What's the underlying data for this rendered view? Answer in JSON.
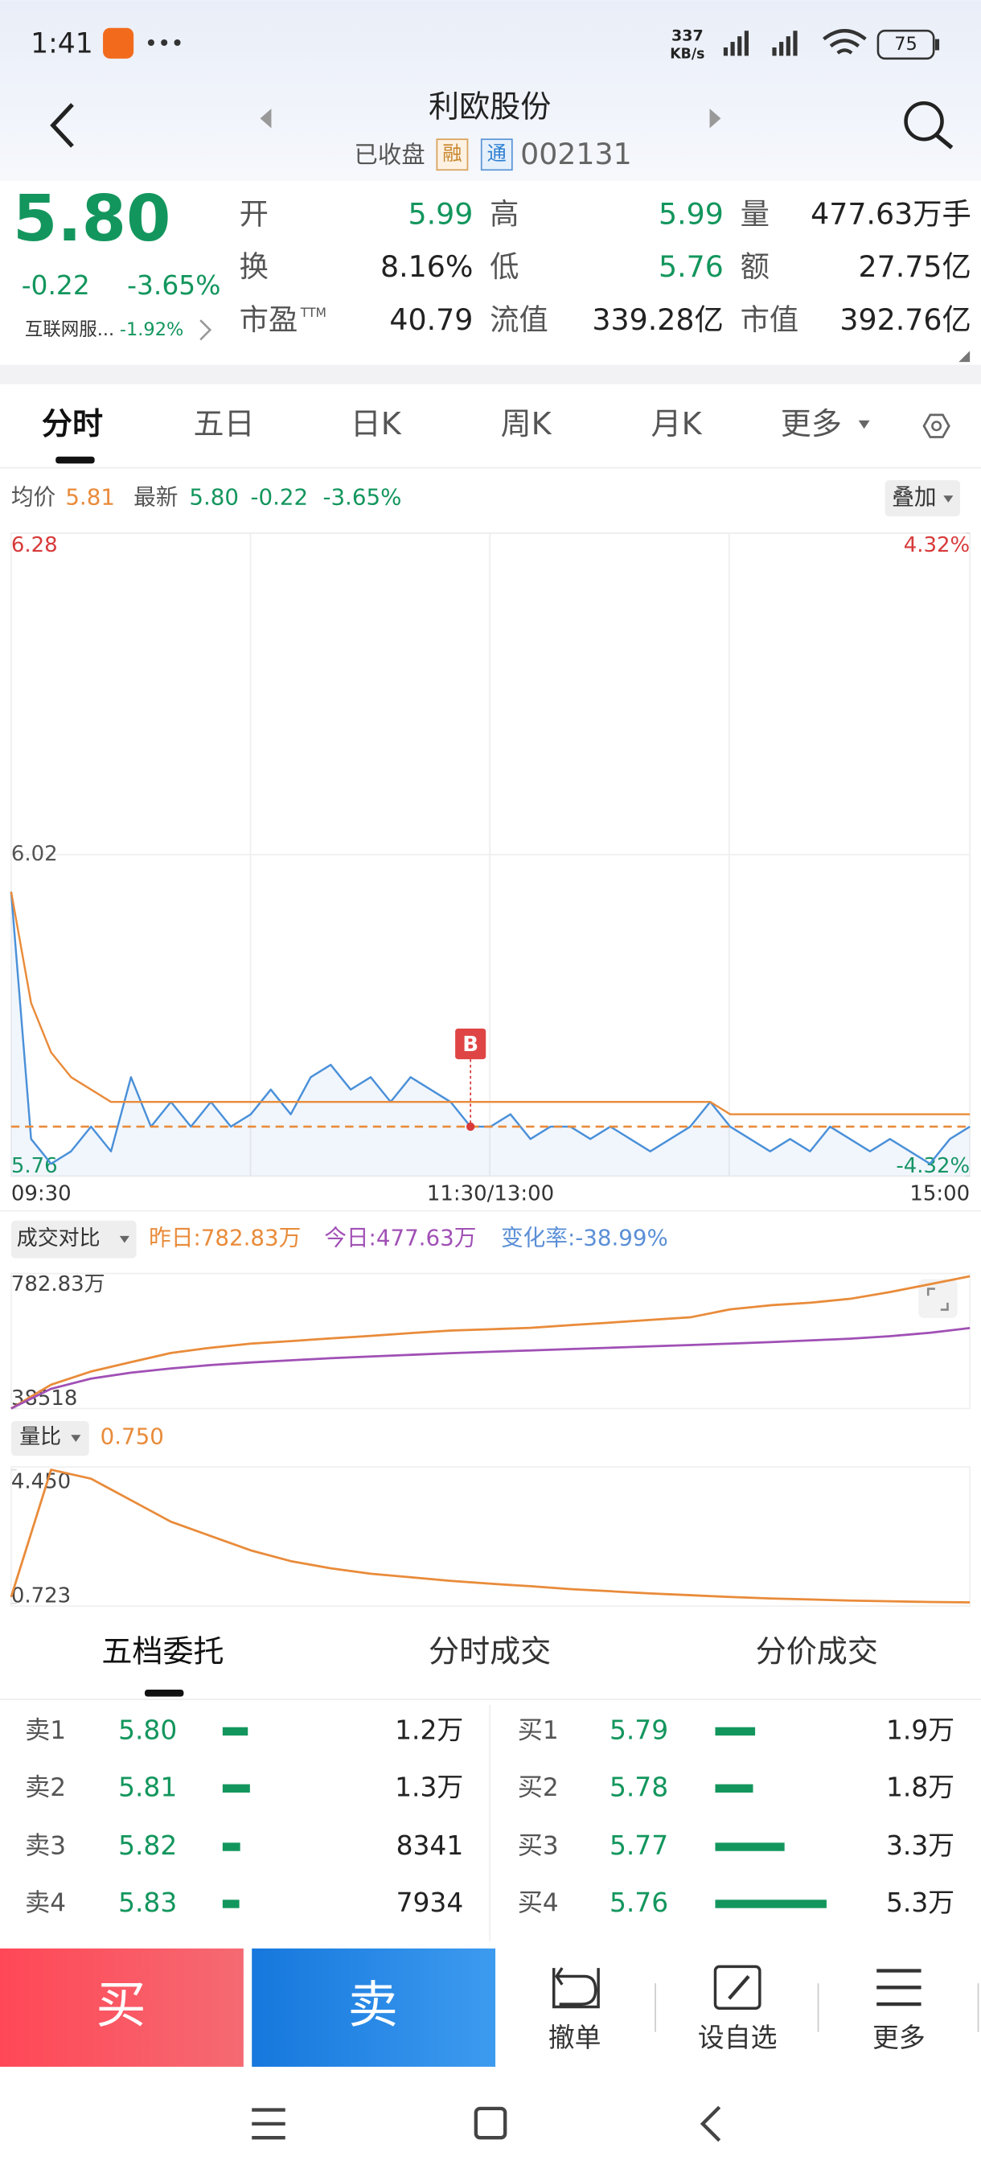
{
  "status_bar": {
    "time": "1:41",
    "speed": "337",
    "speed_unit": "KB/s",
    "battery": "75"
  },
  "header": {
    "title": "利欧股份",
    "status": "已收盘",
    "badge_margin": "融",
    "badge_connect": "通",
    "code": "002131"
  },
  "quote": {
    "price": "5.80",
    "change": "-0.22",
    "change_pct": "-3.65%",
    "sector": "互联网服...",
    "sector_change": "-1.92%",
    "stats": [
      [
        {
          "label": "开",
          "value": "5.99"
        },
        {
          "label": "高",
          "value": "5.99"
        },
        {
          "label": "量",
          "value": "477.63万手"
        }
      ],
      [
        {
          "label": "换",
          "value": "8.16%"
        },
        {
          "label": "低",
          "value": "5.76"
        },
        {
          "label": "额",
          "value": "27.75亿"
        }
      ],
      [
        {
          "label": "市盈",
          "sup": "TTM",
          "value": "40.79"
        },
        {
          "label": "流值",
          "value": "339.28亿"
        },
        {
          "label": "市值",
          "value": "392.76亿"
        }
      ]
    ]
  },
  "tabs": [
    "分时",
    "五日",
    "日K",
    "周K",
    "月K",
    "更多"
  ],
  "info": {
    "avg_label": "均价",
    "avg": "5.81",
    "latest_label": "最新",
    "latest": "5.80",
    "change": "-0.22",
    "change_pct": "-3.65%",
    "overlay": "叠加"
  },
  "intraday": {
    "type": "line",
    "ylim": [
      5.76,
      6.28
    ],
    "yticks": [
      5.76,
      6.02,
      6.28
    ],
    "y2lim": [
      -4.32,
      4.32
    ],
    "y2ticks": [
      {
        "value": -4.32,
        "label": "-4.32%"
      },
      {
        "value": 4.32,
        "label": "4.32%"
      }
    ],
    "x_labels": [
      "09:30",
      "11:30/13:00",
      "15:00"
    ],
    "marker": "B",
    "series": [
      {
        "color": "#4a90d9",
        "values": [
          5.99,
          5.79,
          5.77,
          5.78,
          5.8,
          5.78,
          5.84,
          5.8,
          5.82,
          5.8,
          5.82,
          5.8,
          5.81,
          5.83,
          5.81,
          5.84,
          5.85,
          5.83,
          5.84,
          5.82,
          5.84,
          5.83,
          5.82,
          5.8,
          5.8,
          5.81,
          5.79,
          5.8,
          5.8,
          5.79,
          5.8,
          5.79,
          5.78,
          5.79,
          5.8,
          5.82,
          5.8,
          5.79,
          5.78,
          5.79,
          5.78,
          5.8,
          5.79,
          5.78,
          5.79,
          5.78,
          5.77,
          5.79,
          5.8
        ]
      },
      {
        "color": "#e98b3a",
        "values": [
          5.99,
          5.9,
          5.86,
          5.84,
          5.83,
          5.82,
          5.82,
          5.82,
          5.82,
          5.82,
          5.82,
          5.82,
          5.82,
          5.82,
          5.82,
          5.82,
          5.82,
          5.82,
          5.82,
          5.82,
          5.82,
          5.82,
          5.82,
          5.82,
          5.82,
          5.82,
          5.82,
          5.82,
          5.82,
          5.82,
          5.82,
          5.82,
          5.82,
          5.82,
          5.82,
          5.82,
          5.81,
          5.81,
          5.81,
          5.81,
          5.81,
          5.81,
          5.81,
          5.81,
          5.81,
          5.81,
          5.81,
          5.81,
          5.81
        ]
      }
    ]
  },
  "volume_compare": {
    "type": "line",
    "selector": "成交对比",
    "yesterday": "昨日:782.83万",
    "today": "今日:477.63万",
    "change": "变化率:-38.99%",
    "ylim": [
      38518,
      7828300
    ],
    "yticks": [
      38518,
      {
        "value": 7828300,
        "label": "782.83万"
      }
    ],
    "series": [
      {
        "color": "#e98b3a",
        "values": [
          38518,
          1440000,
          2220000,
          2770000,
          3310000,
          3620000,
          3860000,
          4010000,
          4170000,
          4320000,
          4480000,
          4630000,
          4710000,
          4790000,
          4950000,
          5100000,
          5260000,
          5410000,
          5880000,
          6120000,
          6270000,
          6500000,
          6900000,
          7360000,
          7828300
        ]
      },
      {
        "color": "#a050b5",
        "values": [
          38518,
          1200000,
          1800000,
          2150000,
          2400000,
          2600000,
          2750000,
          2880000,
          3000000,
          3100000,
          3200000,
          3300000,
          3380000,
          3460000,
          3540000,
          3620000,
          3700000,
          3780000,
          3860000,
          3950000,
          4050000,
          4150000,
          4300000,
          4500000,
          4776300
        ]
      }
    ]
  },
  "volume_ratio": {
    "type": "line",
    "selector": "量比",
    "value": "0.750",
    "ylim": [
      0.723,
      4.45
    ],
    "yticks": [
      0.723,
      {
        "value": 4.45,
        "label": "4.450"
      }
    ],
    "series": [
      {
        "color": "#e98b3a",
        "values": [
          0.9,
          4.45,
          4.2,
          3.6,
          3.0,
          2.6,
          2.2,
          1.9,
          1.7,
          1.55,
          1.45,
          1.35,
          1.27,
          1.2,
          1.12,
          1.06,
          1.0,
          0.95,
          0.9,
          0.86,
          0.83,
          0.8,
          0.78,
          0.76,
          0.75
        ]
      }
    ]
  },
  "book_tabs": [
    "五档委托",
    "分时成交",
    "分价成交"
  ],
  "order_book": {
    "asks": [
      {
        "label": "卖1",
        "price": "5.80",
        "volume": 12000,
        "volume_label": "1.2万"
      },
      {
        "label": "卖2",
        "price": "5.81",
        "volume": 13000,
        "volume_label": "1.3万"
      },
      {
        "label": "卖3",
        "price": "5.82",
        "volume": 8341,
        "volume_label": "8341"
      },
      {
        "label": "卖4",
        "price": "5.83",
        "volume": 7934,
        "volume_label": "7934"
      }
    ],
    "bids": [
      {
        "label": "买1",
        "price": "5.79",
        "volume": 19000,
        "volume_label": "1.9万"
      },
      {
        "label": "买2",
        "price": "5.78",
        "volume": 18000,
        "volume_label": "1.8万"
      },
      {
        "label": "买3",
        "price": "5.77",
        "volume": 33000,
        "volume_label": "3.3万"
      },
      {
        "label": "买4",
        "price": "5.76",
        "volume": 53000,
        "volume_label": "5.3万"
      }
    ]
  },
  "actions": {
    "buy": "买",
    "sell": "卖",
    "cancel": "撤单",
    "watch": "设自选",
    "more": "更多"
  }
}
